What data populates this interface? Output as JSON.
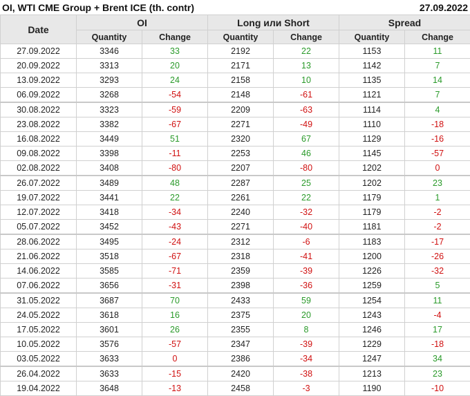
{
  "title": "OI, WTI CME Group + Brent ICE (th. contr)",
  "date": "27.09.2022",
  "headers": {
    "date": "Date",
    "oi": "OI",
    "ls": "Long или Short",
    "spread": "Spread",
    "quantity": "Quantity",
    "change": "Change"
  },
  "colors": {
    "positive": "#2a9a2a",
    "negative": "#d01010"
  },
  "rows": [
    [
      "27.09.2022",
      "3346",
      "33",
      "2192",
      "22",
      "1153",
      "11"
    ],
    [
      "20.09.2022",
      "3313",
      "20",
      "2171",
      "13",
      "1142",
      "7"
    ],
    [
      "13.09.2022",
      "3293",
      "24",
      "2158",
      "10",
      "1135",
      "14"
    ],
    [
      "06.09.2022",
      "3268",
      "-54",
      "2148",
      "-61",
      "1121",
      "7"
    ],
    [
      "30.08.2022",
      "3323",
      "-59",
      "2209",
      "-63",
      "1114",
      "4"
    ],
    [
      "23.08.2022",
      "3382",
      "-67",
      "2271",
      "-49",
      "1110",
      "-18"
    ],
    [
      "16.08.2022",
      "3449",
      "51",
      "2320",
      "67",
      "1129",
      "-16"
    ],
    [
      "09.08.2022",
      "3398",
      "-11",
      "2253",
      "46",
      "1145",
      "-57"
    ],
    [
      "02.08.2022",
      "3408",
      "-80",
      "2207",
      "-80",
      "1202",
      "0"
    ],
    [
      "26.07.2022",
      "3489",
      "48",
      "2287",
      "25",
      "1202",
      "23"
    ],
    [
      "19.07.2022",
      "3441",
      "22",
      "2261",
      "22",
      "1179",
      "1"
    ],
    [
      "12.07.2022",
      "3418",
      "-34",
      "2240",
      "-32",
      "1179",
      "-2"
    ],
    [
      "05.07.2022",
      "3452",
      "-43",
      "2271",
      "-40",
      "1181",
      "-2"
    ],
    [
      "28.06.2022",
      "3495",
      "-24",
      "2312",
      "-6",
      "1183",
      "-17"
    ],
    [
      "21.06.2022",
      "3518",
      "-67",
      "2318",
      "-41",
      "1200",
      "-26"
    ],
    [
      "14.06.2022",
      "3585",
      "-71",
      "2359",
      "-39",
      "1226",
      "-32"
    ],
    [
      "07.06.2022",
      "3656",
      "-31",
      "2398",
      "-36",
      "1259",
      "5"
    ],
    [
      "31.05.2022",
      "3687",
      "70",
      "2433",
      "59",
      "1254",
      "11"
    ],
    [
      "24.05.2022",
      "3618",
      "16",
      "2375",
      "20",
      "1243",
      "-4"
    ],
    [
      "17.05.2022",
      "3601",
      "26",
      "2355",
      "8",
      "1246",
      "17"
    ],
    [
      "10.05.2022",
      "3576",
      "-57",
      "2347",
      "-39",
      "1229",
      "-18"
    ],
    [
      "03.05.2022",
      "3633",
      "0",
      "2386",
      "-34",
      "1247",
      "34"
    ],
    [
      "26.04.2022",
      "3633",
      "-15",
      "2420",
      "-38",
      "1213",
      "23"
    ],
    [
      "19.04.2022",
      "3648",
      "-13",
      "2458",
      "-3",
      "1190",
      "-10"
    ]
  ]
}
